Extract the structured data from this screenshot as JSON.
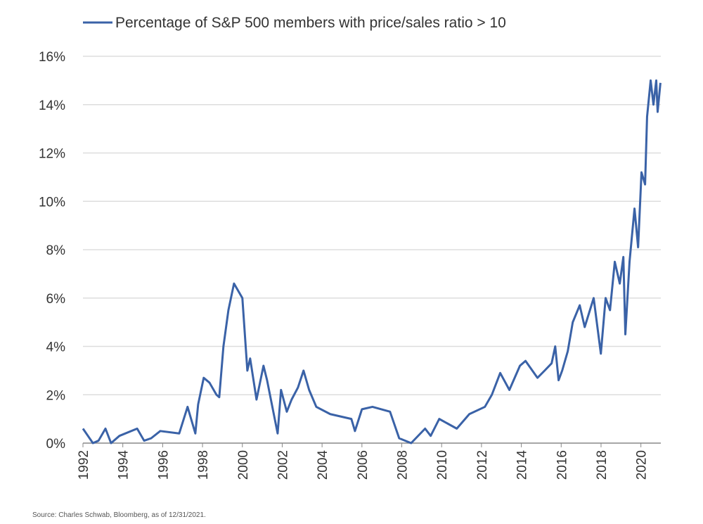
{
  "chart_data": {
    "type": "line",
    "source": "Source: Charles Schwab, Bloomberg, as of 12/31/2021.",
    "legend": "top",
    "grid": true,
    "xlim": [
      1992,
      2021
    ],
    "xticks": [
      1992,
      1994,
      1996,
      1998,
      2000,
      2002,
      2004,
      2006,
      2008,
      2010,
      2012,
      2014,
      2016,
      2018,
      2020
    ],
    "ylim": [
      0,
      16
    ],
    "yticks": [
      {
        "value": 0,
        "label": "0%"
      },
      {
        "value": 2,
        "label": "2%"
      },
      {
        "value": 4,
        "label": "4%"
      },
      {
        "value": 6,
        "label": "6%"
      },
      {
        "value": 8,
        "label": "8%"
      },
      {
        "value": 10,
        "label": "10%"
      },
      {
        "value": 12,
        "label": "12%"
      },
      {
        "value": 14,
        "label": "14%"
      },
      {
        "value": 16,
        "label": "16%"
      }
    ],
    "x": [
      1992.0,
      1992.25,
      1992.5,
      1992.78,
      1993.13,
      1993.41,
      1993.83,
      1994.72,
      1995.07,
      1995.42,
      1995.88,
      1996.83,
      1997.25,
      1997.64,
      1997.78,
      1998.06,
      1998.35,
      1998.7,
      1998.84,
      1999.05,
      1999.3,
      1999.58,
      2000.0,
      2000.25,
      2000.39,
      2000.71,
      2001.06,
      2001.24,
      2001.77,
      2001.94,
      2002.23,
      2002.47,
      2002.79,
      2003.07,
      2003.35,
      2003.71,
      2004.41,
      2005.47,
      2005.65,
      2006.0,
      2006.53,
      2007.41,
      2007.87,
      2008.47,
      2009.17,
      2009.45,
      2009.88,
      2010.76,
      2011.39,
      2012.17,
      2012.52,
      2012.94,
      2013.4,
      2013.93,
      2014.21,
      2014.81,
      2015.17,
      2015.52,
      2015.7,
      2015.87,
      2016.05,
      2016.33,
      2016.58,
      2016.93,
      2017.18,
      2017.63,
      2017.99,
      2018.23,
      2018.45,
      2018.69,
      2018.94,
      2019.12,
      2019.22,
      2019.43,
      2019.68,
      2019.86,
      2020.03,
      2020.21,
      2020.31,
      2020.49,
      2020.63,
      2020.77,
      2020.84,
      2020.98
    ],
    "series": [
      {
        "name": "Percentage of S&P 500 members with price/sales ratio > 10",
        "color": "#3a62a7",
        "values": [
          0.6,
          0.3,
          0.0,
          0.1,
          0.6,
          0.0,
          0.3,
          0.6,
          0.1,
          0.2,
          0.5,
          0.4,
          1.5,
          0.4,
          1.6,
          2.7,
          2.5,
          2.0,
          1.9,
          4.0,
          5.5,
          6.6,
          6.0,
          3.0,
          3.5,
          1.8,
          3.2,
          2.6,
          0.4,
          2.2,
          1.3,
          1.8,
          2.3,
          3.0,
          2.2,
          1.5,
          1.2,
          1.0,
          0.5,
          1.4,
          1.5,
          1.3,
          0.2,
          0.0,
          0.6,
          0.3,
          1.0,
          0.6,
          1.2,
          1.5,
          2.0,
          2.9,
          2.2,
          3.2,
          3.4,
          2.7,
          3.0,
          3.3,
          4.0,
          2.6,
          3.0,
          3.8,
          5.0,
          5.7,
          4.8,
          6.0,
          3.7,
          6.0,
          5.5,
          7.5,
          6.6,
          7.7,
          4.5,
          7.5,
          9.7,
          8.1,
          11.2,
          10.7,
          13.5,
          15.0,
          14.0,
          15.0,
          13.7,
          14.9
        ]
      }
    ]
  }
}
